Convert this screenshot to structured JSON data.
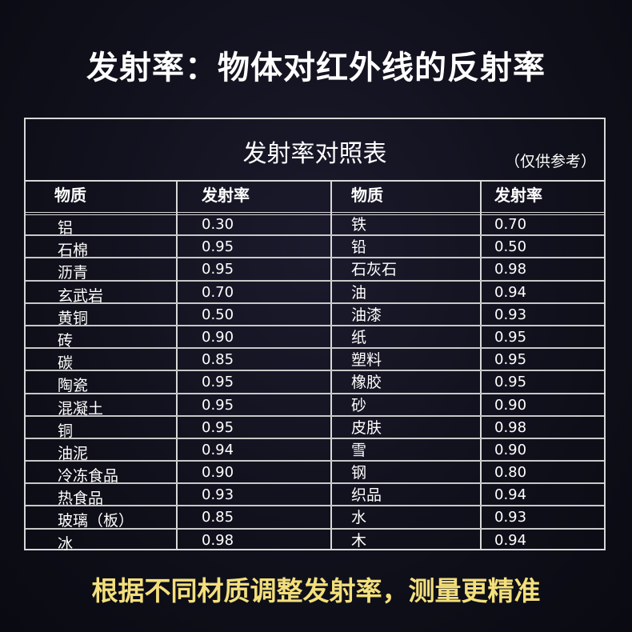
{
  "headline": "发射率：物体对红外线的反射率",
  "table": {
    "title": "发射率对照表",
    "note": "（仅供参考）",
    "headers": [
      "物质",
      "发射率",
      "物质",
      "发射率"
    ],
    "rows": [
      [
        "铝",
        "0.30",
        "铁",
        "0.70"
      ],
      [
        "石棉",
        "0.95",
        "铅",
        "0.50"
      ],
      [
        "沥青",
        "0.95",
        "石灰石",
        "0.98"
      ],
      [
        "玄武岩",
        "0.70",
        "油",
        "0.94"
      ],
      [
        "黄铜",
        "0.50",
        "油漆",
        "0.93"
      ],
      [
        "砖",
        "0.90",
        "纸",
        "0.95"
      ],
      [
        "碳",
        "0.85",
        "塑料",
        "0.95"
      ],
      [
        "陶瓷",
        "0.95",
        "橡胶",
        "0.95"
      ],
      [
        "混凝土",
        "0.95",
        "砂",
        "0.90"
      ],
      [
        "铜",
        "0.95",
        "皮肤",
        "0.98"
      ],
      [
        "油泥",
        "0.94",
        "雪",
        "0.90"
      ],
      [
        "冷冻食品",
        "0.90",
        "钢",
        "0.80"
      ],
      [
        " 热食品",
        "0.93",
        "织品",
        "0.94"
      ],
      [
        "玻璃（板）",
        "0.85",
        "水",
        "0.93"
      ],
      [
        "冰",
        "0.98",
        "木",
        "0.94"
      ]
    ]
  },
  "footer": "根据不同材质调整发射率，测量更精准",
  "colors": {
    "background": "#0e0e18",
    "text": "#ffffff",
    "footer": "#f3df7c",
    "border": "#d8d8d8"
  }
}
